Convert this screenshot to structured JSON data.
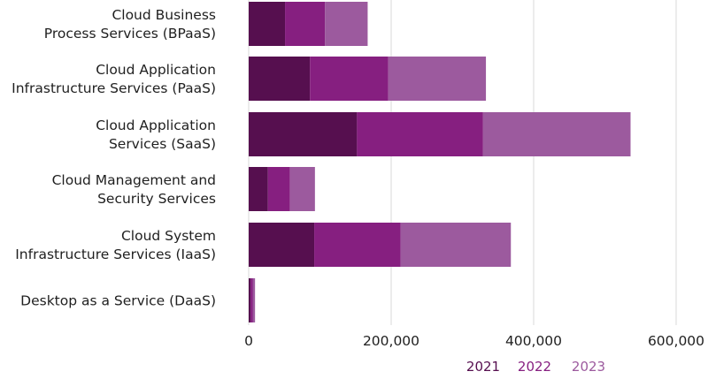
{
  "chart_data": {
    "type": "bar",
    "orientation": "horizontal",
    "stacked": true,
    "title": "",
    "xlabel": "",
    "ylabel": "",
    "categories": [
      [
        "Cloud Business",
        "Process Services (BPaaS)"
      ],
      [
        "Cloud Application",
        "Infrastructure Services (PaaS)"
      ],
      [
        "Cloud Application",
        "Services (SaaS)"
      ],
      [
        "Cloud Management and",
        "Security Services"
      ],
      [
        "Cloud System",
        "Infrastructure Services (IaaS)"
      ],
      [
        "Desktop as a Service (DaaS)"
      ]
    ],
    "series": [
      {
        "name": "2021",
        "color": "#560f4f",
        "values": [
          51000,
          86000,
          152000,
          27000,
          92000,
          2600
        ]
      },
      {
        "name": "2022",
        "color": "#861f80",
        "values": [
          56000,
          110000,
          177000,
          31000,
          121000,
          3000
        ]
      },
      {
        "name": "2023",
        "color": "#9c5a9e",
        "values": [
          60000,
          137000,
          207000,
          35000,
          155000,
          3300
        ]
      }
    ],
    "xlim": [
      0,
      600000
    ],
    "xticks": [
      0,
      200000,
      400000,
      600000
    ],
    "xtick_labels": [
      "0",
      "200,000",
      "400,000",
      "600,000"
    ],
    "grid": "vertical",
    "legend_position": "bottom"
  }
}
